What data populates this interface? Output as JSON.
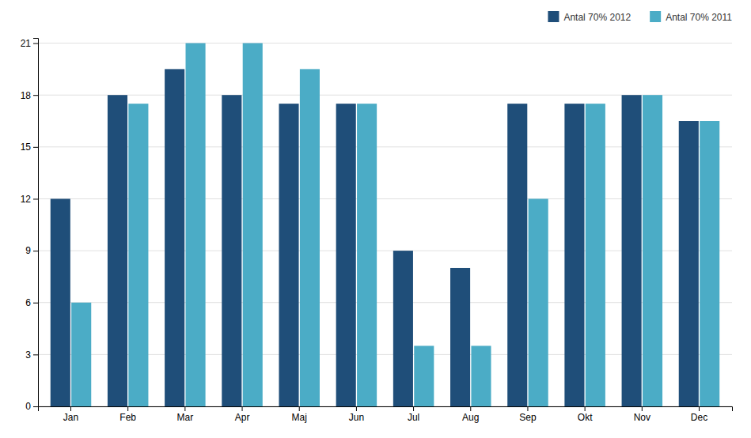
{
  "chart_data": {
    "type": "bar",
    "categories": [
      "Jan",
      "Feb",
      "Mar",
      "Apr",
      "Maj",
      "Jun",
      "Jul",
      "Aug",
      "Sep",
      "Okt",
      "Nov",
      "Dec"
    ],
    "series": [
      {
        "name": "Antal 70% 2012",
        "color": "#1F4E79",
        "values": [
          12,
          18,
          19.5,
          18,
          17.5,
          17.5,
          9,
          8,
          17.5,
          17.5,
          18,
          16.5
        ]
      },
      {
        "name": "Antal 70% 2011",
        "color": "#4BACC6",
        "values": [
          6,
          17.5,
          21,
          21,
          19.5,
          17.5,
          3.5,
          3.5,
          12,
          17.5,
          18,
          16.5
        ]
      }
    ],
    "ylim": [
      0,
      21.3
    ],
    "yticks": [
      0,
      3,
      6,
      9,
      12,
      15,
      18,
      21
    ],
    "grid": true,
    "legend": "upper right"
  }
}
